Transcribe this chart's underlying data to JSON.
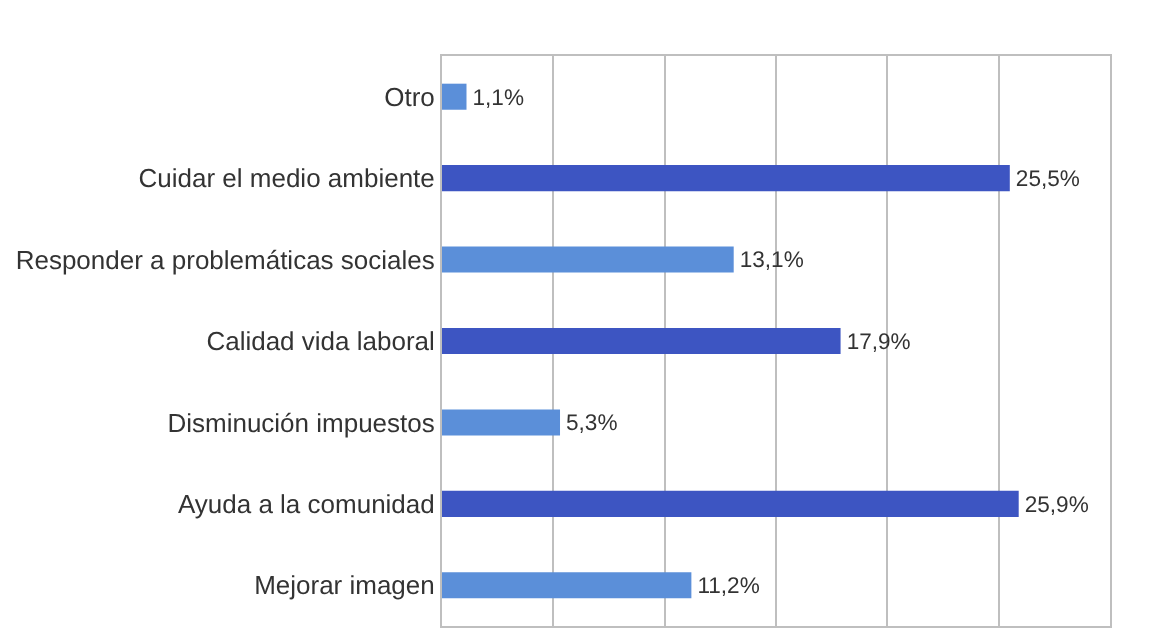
{
  "chart_data": {
    "type": "bar",
    "orientation": "horizontal",
    "categories": [
      "Otro",
      "Cuidar el medio ambiente",
      "Responder a problemáticas sociales",
      "Calidad vida laboral",
      "Disminución impuestos",
      "Ayuda a la comunidad",
      "Mejorar imagen"
    ],
    "values": [
      1.1,
      25.5,
      13.1,
      17.9,
      5.3,
      25.9,
      11.2
    ],
    "value_labels": [
      "1,1%",
      "25,5%",
      "13,1%",
      "17,9%",
      "5,3%",
      "25,9%",
      "11,2%"
    ],
    "colors": [
      "#5b8fd9",
      "#3d55c2",
      "#5b8fd9",
      "#3d55c2",
      "#5b8fd9",
      "#3d55c2",
      "#5b8fd9"
    ],
    "xlim": [
      0,
      30
    ],
    "xticks": [
      {
        "value": 0,
        "label": null
      },
      {
        "value": 5,
        "label": null
      },
      {
        "value": 10,
        "label": null
      },
      {
        "value": 15,
        "label": null
      },
      {
        "value": 20,
        "label": null
      },
      {
        "value": 25,
        "label": null
      },
      {
        "value": 30,
        "label": null
      }
    ],
    "grid": "x",
    "tick_labels": "y"
  }
}
